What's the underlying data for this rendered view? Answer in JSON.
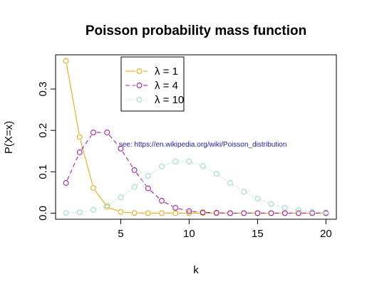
{
  "chart_data": {
    "type": "line",
    "title": "Poisson probability mass function",
    "xlabel": "k",
    "ylabel": "P(X=x)",
    "xlim": [
      0.24,
      20.76
    ],
    "ylim": [
      -0.0147,
      0.3826
    ],
    "x_ticks": [
      5,
      10,
      15,
      20
    ],
    "y_ticks": [
      0.0,
      0.1,
      0.2,
      0.3
    ],
    "x_tick_labels": [
      "5",
      "10",
      "15",
      "20"
    ],
    "y_tick_labels": [
      "0.0",
      "0.1",
      "0.2",
      "0.3"
    ],
    "grid": false,
    "legend_position": "top-left",
    "annotation": {
      "text": "see: https://en.wikipedia.org/wiki/Poisson_distribution",
      "x": 11.0,
      "y": 0.161,
      "color": "#1a1aa6"
    },
    "x": [
      1,
      2,
      3,
      4,
      5,
      6,
      7,
      8,
      9,
      10,
      11,
      12,
      13,
      14,
      15,
      16,
      17,
      18,
      19,
      20
    ],
    "series": [
      {
        "name": "λ = 1",
        "color": "#e6a817",
        "dash": "solid",
        "values": [
          0.368,
          0.184,
          0.061,
          0.015,
          0.003,
          0.0005,
          0.0001,
          0.0,
          0.0,
          0.0,
          0.0,
          0.0,
          0.0,
          0.0,
          0.0,
          0.0,
          0.0,
          0.0,
          0.0,
          0.0
        ]
      },
      {
        "name": "λ = 4",
        "color": "#a0209f",
        "dash": "dashed",
        "values": [
          0.073,
          0.147,
          0.195,
          0.195,
          0.156,
          0.104,
          0.06,
          0.03,
          0.013,
          0.005,
          0.002,
          0.001,
          0.0,
          0.0,
          0.0,
          0.0,
          0.0,
          0.0,
          0.0,
          0.0
        ]
      },
      {
        "name": "λ = 10",
        "color": "#9dd9cf",
        "dash": "dotted",
        "values": [
          0.0005,
          0.002,
          0.008,
          0.019,
          0.038,
          0.063,
          0.09,
          0.113,
          0.125,
          0.125,
          0.114,
          0.095,
          0.073,
          0.052,
          0.035,
          0.022,
          0.013,
          0.007,
          0.004,
          0.002
        ]
      }
    ]
  }
}
